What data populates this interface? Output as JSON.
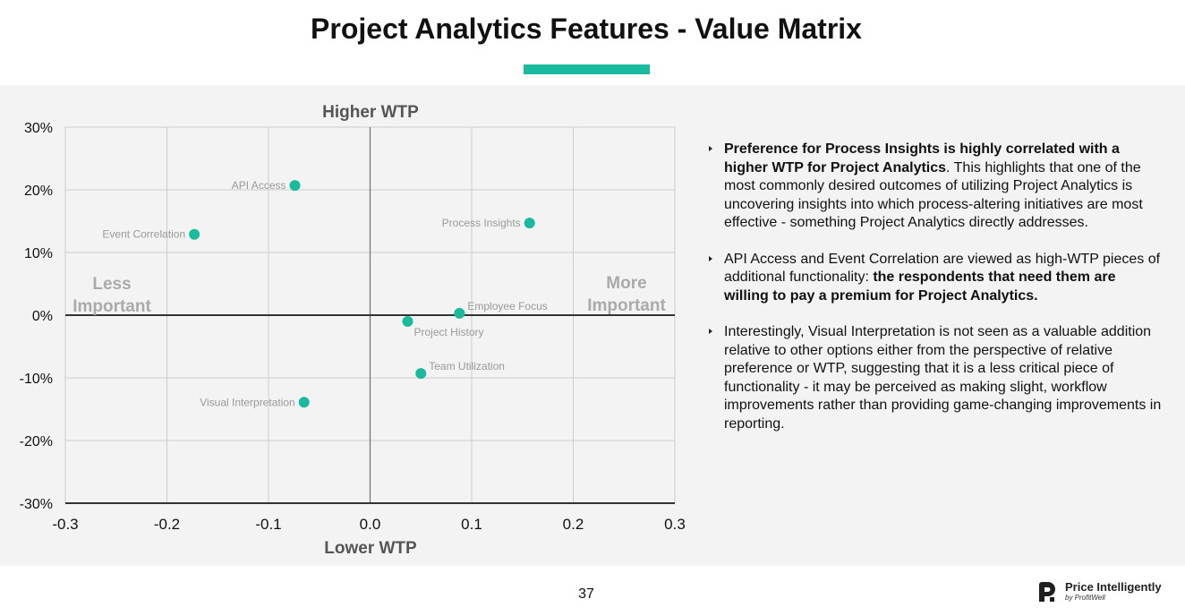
{
  "page": {
    "title": "Project Analytics Features - Value Matrix",
    "page_number": "37",
    "colors": {
      "accent": "#1aba9e",
      "panel": "#f3f3f3",
      "point": "#1aba9e"
    }
  },
  "chart_data": {
    "type": "scatter",
    "top_label": "Higher WTP",
    "bottom_label": "Lower WTP",
    "left_label": [
      "Less",
      "Important"
    ],
    "right_label": [
      "More",
      "Important"
    ],
    "xlim": [
      -0.3,
      0.3
    ],
    "ylim": [
      -0.3,
      0.3
    ],
    "x_ticks": [
      {
        "v": -0.3,
        "label": "-0.3"
      },
      {
        "v": -0.2,
        "label": "-0.2"
      },
      {
        "v": -0.1,
        "label": "-0.1"
      },
      {
        "v": 0.0,
        "label": "0.0"
      },
      {
        "v": 0.1,
        "label": "0.1"
      },
      {
        "v": 0.2,
        "label": "0.2"
      },
      {
        "v": 0.3,
        "label": "0.3"
      }
    ],
    "y_ticks": [
      {
        "v": 0.3,
        "label": "30%"
      },
      {
        "v": 0.2,
        "label": "20%"
      },
      {
        "v": 0.1,
        "label": "10%"
      },
      {
        "v": 0.0,
        "label": "0%"
      },
      {
        "v": -0.1,
        "label": "-10%"
      },
      {
        "v": -0.2,
        "label": "-20%"
      },
      {
        "v": -0.3,
        "label": "-30%"
      }
    ],
    "grid": true,
    "points": [
      {
        "label": "API Access",
        "x": -0.074,
        "y": 0.207,
        "label_pos": "left"
      },
      {
        "label": "Process Insights",
        "x": 0.157,
        "y": 0.147,
        "label_pos": "left"
      },
      {
        "label": "Event Correlation",
        "x": -0.173,
        "y": 0.129,
        "label_pos": "left"
      },
      {
        "label": "Employee Focus",
        "x": 0.088,
        "y": 0.003,
        "label_pos": "right"
      },
      {
        "label": "Project History",
        "x": 0.037,
        "y": -0.01,
        "label_pos": "below-right"
      },
      {
        "label": "Team Utilization",
        "x": 0.05,
        "y": -0.093,
        "label_pos": "right"
      },
      {
        "label": "Visual Interpretation",
        "x": -0.065,
        "y": -0.139,
        "label_pos": "left"
      }
    ]
  },
  "bullets": [
    {
      "bold": "Preference for Process Insights is highly correlated with a higher WTP for Project Analytics",
      "after": ". This highlights that one of the most commonly desired outcomes of utilizing Project Analytics is uncovering insights into which process-altering initiatives are most effective -  something Project Analytics directly addresses."
    },
    {
      "before": "API Access and Event Correlation are viewed as high-WTP pieces of additional functionality: ",
      "bold": "the respondents that need them are willing to pay a premium for Project Analytics."
    },
    {
      "before": "Interestingly, Visual Interpretation is not seen as a valuable addition relative to other options either from the perspective of relative preference or WTP, suggesting that it is a less critical piece of functionality -  it may be perceived as making slight, workflow improvements rather than providing game-changing improvements in reporting."
    }
  ],
  "logo": {
    "name": "Price Intelligently",
    "sub": "by ProfitWell",
    "icon": "profitwell-logo-icon"
  }
}
